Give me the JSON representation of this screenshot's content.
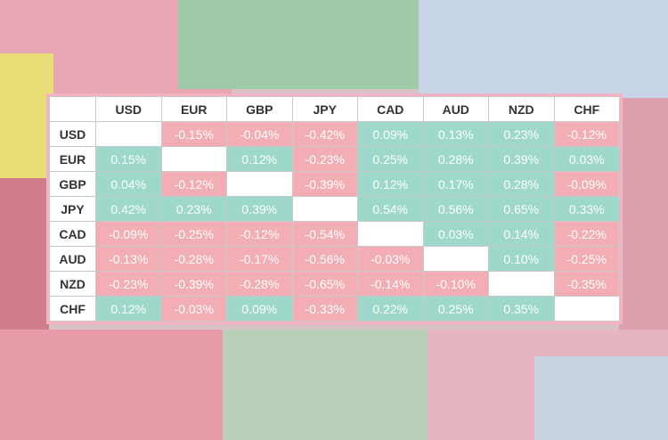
{
  "table": {
    "columns": [
      "USD",
      "EUR",
      "GBP",
      "JPY",
      "CAD",
      "AUD",
      "NZD",
      "CHF"
    ],
    "rows": [
      {
        "label": "USD",
        "cells": [
          null,
          "-0.15%",
          "-0.04%",
          "-0.42%",
          "0.09%",
          "0.13%",
          "0.23%",
          "-0.12%"
        ]
      },
      {
        "label": "EUR",
        "cells": [
          "0.15%",
          null,
          "0.12%",
          "-0.23%",
          "0.25%",
          "0.28%",
          "0.39%",
          "0.03%"
        ]
      },
      {
        "label": "GBP",
        "cells": [
          "0.04%",
          "-0.12%",
          null,
          "-0.39%",
          "0.12%",
          "0.17%",
          "0.28%",
          "-0.09%"
        ]
      },
      {
        "label": "JPY",
        "cells": [
          "0.42%",
          "0.23%",
          "0.39%",
          null,
          "0.54%",
          "0.56%",
          "0.65%",
          "0.33%"
        ]
      },
      {
        "label": "CAD",
        "cells": [
          "-0.09%",
          "-0.25%",
          "-0.12%",
          "-0.54%",
          null,
          "0.03%",
          "0.14%",
          "-0.22%"
        ]
      },
      {
        "label": "AUD",
        "cells": [
          "-0.13%",
          "-0.28%",
          "-0.17%",
          "-0.56%",
          "-0.03%",
          null,
          "0.10%",
          "-0.25%"
        ]
      },
      {
        "label": "NZD",
        "cells": [
          "-0.23%",
          "-0.39%",
          "-0.28%",
          "-0.65%",
          "-0.14%",
          "-0.10%",
          null,
          "-0.35%"
        ]
      },
      {
        "label": "CHF",
        "cells": [
          "0.12%",
          "-0.03%",
          "0.09%",
          "-0.33%",
          "0.22%",
          "0.25%",
          "0.35%",
          null
        ]
      }
    ],
    "positive_color": "#9dd8cb",
    "negative_color": "#f3adb5"
  }
}
